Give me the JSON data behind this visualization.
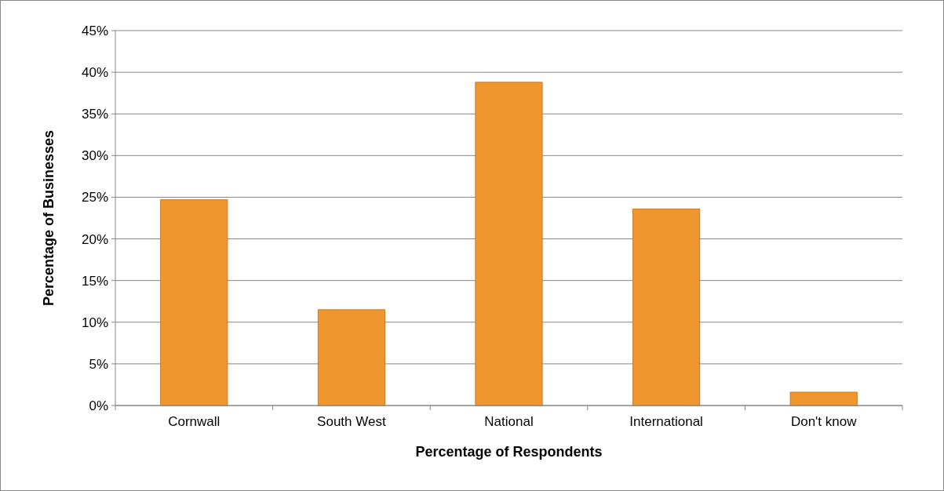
{
  "chart_data": {
    "type": "bar",
    "xlabel": "Percentage of Respondents",
    "ylabel": "Percentage of Businesses",
    "categories": [
      "Cornwall",
      "South West",
      "National",
      "International",
      "Don't know"
    ],
    "values": [
      24.7,
      11.5,
      38.8,
      23.6,
      1.6
    ],
    "color": "#f0962e",
    "ylim": [
      0,
      45
    ],
    "yticks": [
      {
        "value": 0,
        "label": "0%"
      },
      {
        "value": 5,
        "label": "5%"
      },
      {
        "value": 10,
        "label": "10%"
      },
      {
        "value": 15,
        "label": "15%"
      },
      {
        "value": 20,
        "label": "20%"
      },
      {
        "value": 25,
        "label": "25%"
      },
      {
        "value": 30,
        "label": "30%"
      },
      {
        "value": 35,
        "label": "35%"
      },
      {
        "value": 40,
        "label": "40%"
      },
      {
        "value": 45,
        "label": "45%"
      }
    ],
    "grid": "y"
  }
}
